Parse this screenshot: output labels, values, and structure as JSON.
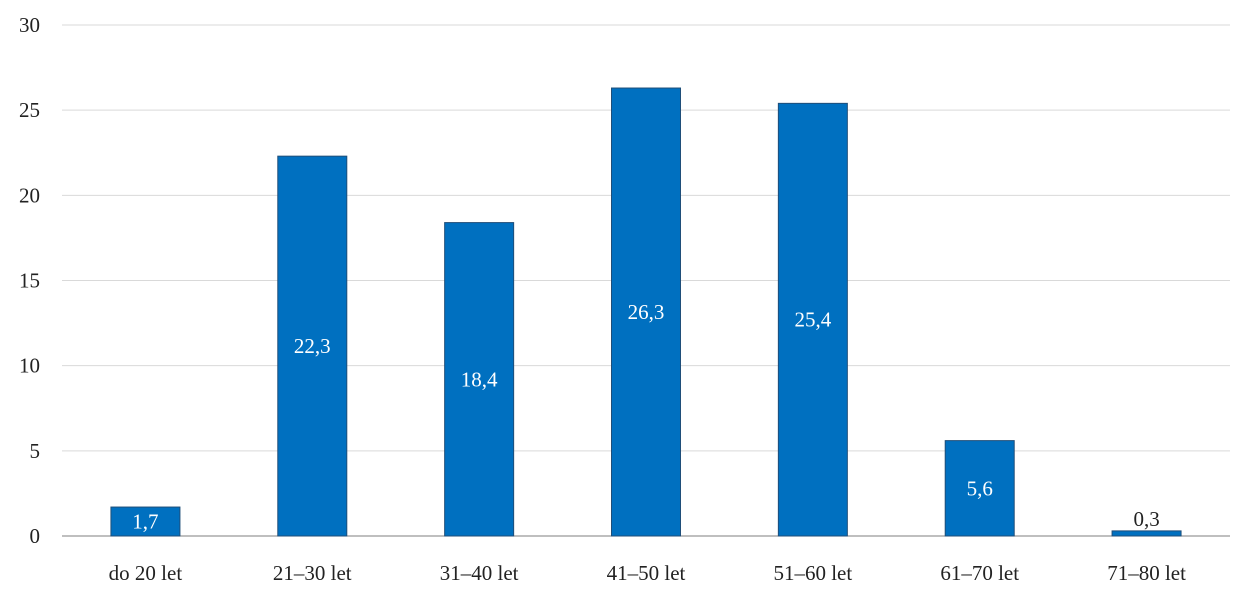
{
  "chart_data": {
    "type": "bar",
    "categories": [
      "do 20 let",
      "21–30 let",
      "31–40 let",
      "41–50 let",
      "51–60 let",
      "61–70 let",
      "71–80 let"
    ],
    "values": [
      1.7,
      22.3,
      18.4,
      26.3,
      25.4,
      5.6,
      0.3
    ],
    "data_labels": [
      "1,7",
      "22,3",
      "18,4",
      "26,3",
      "25,4",
      "5,6",
      "0,3"
    ],
    "y_ticks": [
      "0",
      "5",
      "10",
      "15",
      "20",
      "25",
      "30"
    ],
    "ylim": [
      0,
      30
    ],
    "grid": true,
    "legend": "none",
    "title": "",
    "xlabel": "",
    "ylabel": "",
    "colors": {
      "bar": "#0070c0",
      "bar_edge": "#1f4e79",
      "label_inside": "#ffffff",
      "label_outside": "#222222"
    }
  }
}
